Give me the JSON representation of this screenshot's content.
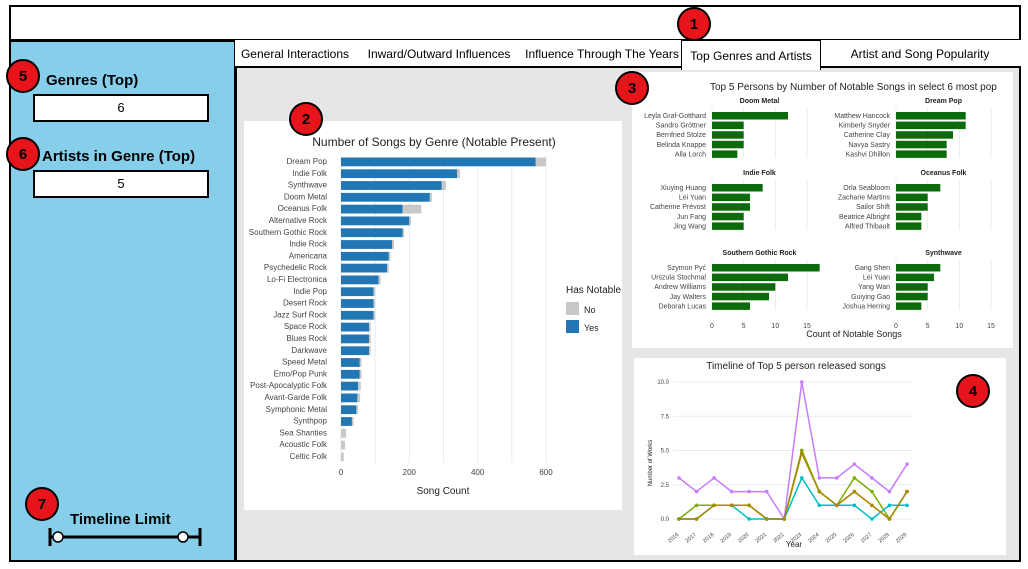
{
  "tabs": [
    {
      "label": "General Interactions"
    },
    {
      "label": "Inward/Outward Influences"
    },
    {
      "label": "Influence Through The Years"
    },
    {
      "label": "Top Genres and Artists"
    },
    {
      "label": "Artist and Song Popularity"
    }
  ],
  "badges": [
    "1",
    "2",
    "3",
    "4",
    "5",
    "6",
    "7"
  ],
  "sidebar": {
    "genres_label": "Genres (Top)",
    "genres_value": "6",
    "artists_label": "Artists in Genre (Top)",
    "artists_value": "5",
    "timeline_label": "Timeline Limit"
  },
  "colors": {
    "sidebar": "#87CEEB",
    "yes": "#2077b4",
    "no": "#c8c8c8",
    "green": "#0b6b0b",
    "badge": "#e8141b"
  },
  "chart_data": [
    {
      "type": "bar",
      "orientation": "horizontal",
      "title": "Number of Songs by Genre (Notable Present)",
      "xlabel": "Song Count",
      "xlim": [
        0,
        600
      ],
      "xticks": [
        "0",
        "200",
        "400",
        "600"
      ],
      "legend": {
        "title": "Has Notable",
        "entries": [
          "No",
          "Yes"
        ],
        "placement": "right"
      },
      "categories": [
        "Dream Pop",
        "Indie Folk",
        "Synthwave",
        "Doom Metal",
        "Oceanus Folk",
        "Alternative Rock",
        "Southern Gothic Rock",
        "Indie Rock",
        "Americana",
        "Psychedelic Rock",
        "Lo-Fi Electronica",
        "Indie Pop",
        "Desert Rock",
        "Jazz Surf Rock",
        "Space Rock",
        "Blues Rock",
        "Darkwave",
        "Speed Metal",
        "Emo/Pop Punk",
        "Post-Apocalyptic Folk",
        "Avant-Garde Folk",
        "Symphonic Metal",
        "Synthpop",
        "Sea Shanties",
        "Acoustic Folk",
        "Celtic Folk"
      ],
      "series": [
        {
          "name": "Yes",
          "values": [
            570,
            340,
            295,
            260,
            180,
            200,
            180,
            150,
            140,
            135,
            110,
            95,
            95,
            95,
            82,
            82,
            82,
            55,
            55,
            50,
            48,
            45,
            32,
            0,
            0,
            0
          ]
        },
        {
          "name": "No",
          "values": [
            30,
            8,
            12,
            6,
            55,
            5,
            5,
            5,
            5,
            5,
            6,
            5,
            5,
            5,
            5,
            5,
            5,
            5,
            5,
            8,
            8,
            5,
            5,
            15,
            12,
            8
          ]
        }
      ]
    },
    {
      "type": "bar",
      "orientation": "horizontal",
      "title": "Top 5 Persons by Number of Notable Songs in select 6 most pop",
      "xlabel": "Count of Notable Songs",
      "xlim": [
        0,
        15
      ],
      "xticks": [
        "0",
        "5",
        "10",
        "15"
      ],
      "facets": [
        {
          "name": "Doom Metal",
          "people": [
            "Leyla Graf-Gotthard",
            "Sandro Gröttner",
            "Bernfried Stolze",
            "Belinda Knappe",
            "Alla Lorch"
          ],
          "values": [
            12,
            5,
            5,
            5,
            4
          ]
        },
        {
          "name": "Dream Pop",
          "people": [
            "Matthew Hancock",
            "Kimberly Snyder",
            "Catherine Clay",
            "Navya Sastry",
            "Kashvi Dhillon"
          ],
          "values": [
            11,
            11,
            9,
            8,
            8
          ]
        },
        {
          "name": "Indie Folk",
          "people": [
            "Xiuying Huang",
            "Lei Yuan",
            "Catherine Prévost",
            "Jun Fang",
            "Jing Wang"
          ],
          "values": [
            8,
            6,
            6,
            5,
            5
          ]
        },
        {
          "name": "Oceanus Folk",
          "people": [
            "Orla Seabloom",
            "Zacharie Martins",
            "Sailor Shift",
            "Beatrice Albright",
            "Alfred Thibault"
          ],
          "values": [
            7,
            5,
            5,
            4,
            4
          ]
        },
        {
          "name": "Southern Gothic Rock",
          "people": [
            "Szymon Pyć",
            "Urszula Stochmal",
            "Andrew Williams",
            "Jay Walters",
            "Deborah Lucas"
          ],
          "values": [
            17,
            12,
            10,
            9,
            6
          ]
        },
        {
          "name": "Synthwave",
          "people": [
            "Gang Shen",
            "Lei Yuan",
            "Yang Wan",
            "Guiying Gao",
            "Joshua Herring"
          ],
          "values": [
            7,
            6,
            5,
            5,
            4
          ]
        }
      ]
    },
    {
      "type": "line",
      "title": "Timeline of Top 5 person released songs",
      "xlabel": "Year",
      "ylabel": "Number of Works",
      "ylim": [
        0,
        10
      ],
      "yticks": [
        "0.0",
        "2.5",
        "5.0",
        "7.5",
        "10.0"
      ],
      "x": [
        "2016",
        "2017",
        "2018",
        "2019",
        "2020",
        "2021",
        "2022",
        "2023",
        "2024",
        "2025",
        "2026",
        "2027",
        "2028",
        "2029"
      ],
      "series": [
        {
          "color": "#c77cff",
          "values": [
            3,
            2,
            3,
            2,
            2,
            2,
            0,
            10,
            3,
            3,
            4,
            3,
            2,
            4
          ]
        },
        {
          "color": "#f8766d",
          "values": [
            0,
            0,
            1,
            1,
            1,
            0,
            0,
            5,
            2,
            1,
            2,
            1,
            0,
            2
          ]
        },
        {
          "color": "#7cae00",
          "values": [
            0,
            1,
            1,
            1,
            1,
            0,
            0,
            5,
            2,
            1,
            3,
            2,
            0,
            2
          ]
        },
        {
          "color": "#00bfc4",
          "values": [
            0,
            0,
            1,
            1,
            0,
            0,
            0,
            3,
            1,
            1,
            1,
            0,
            1,
            1
          ]
        },
        {
          "color": "#a58c00",
          "values": [
            0,
            0,
            1,
            1,
            1,
            0,
            0,
            4.8,
            2,
            1,
            2,
            1,
            0,
            2
          ]
        }
      ]
    }
  ]
}
